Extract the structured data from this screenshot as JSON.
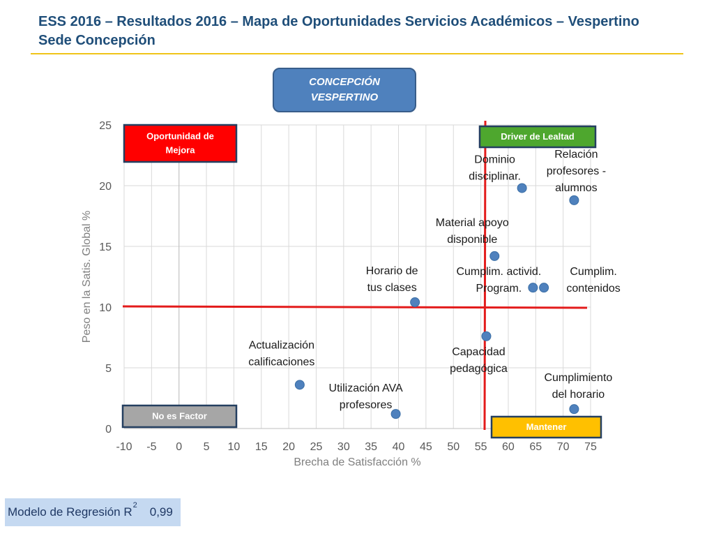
{
  "title": "ESS 2016 – Resultados 2016 – Mapa de Oportunidades Servicios Académicos  – Vespertino\nSede Concepción",
  "badge": "CONCEPCIÓN\nVESPERTINO",
  "colors": {
    "title": "#1f4e79",
    "accent_rule": "#f0c419",
    "point": "#4f81bd",
    "threshold": "#e31b1b",
    "quadrant_oportunidad": "#ff0000",
    "quadrant_driver": "#4ea72e",
    "quadrant_no_factor": "#a6a6a6",
    "quadrant_mantener": "#ffc000"
  },
  "chart_data": {
    "type": "scatter",
    "xlabel": "Brecha de Satisfacción %",
    "ylabel": "Peso en la Satis. Global %",
    "xlim": [
      -10,
      75
    ],
    "ylim": [
      0,
      25
    ],
    "x_ticks": [
      -10,
      -5,
      0,
      5,
      10,
      15,
      20,
      25,
      30,
      35,
      40,
      45,
      50,
      55,
      60,
      65,
      70,
      75
    ],
    "y_ticks": [
      0,
      5,
      10,
      15,
      20,
      25
    ],
    "grid": true,
    "thresholds": {
      "x": 56,
      "y": 10
    },
    "points": [
      {
        "label": "Dominio\ndisciplinar.",
        "x": 62.5,
        "y": 19.8
      },
      {
        "label": "Relación\nprofesores -\nalumnos",
        "x": 72,
        "y": 18.8
      },
      {
        "label": "Material apoyo\ndisponible",
        "x": 57.5,
        "y": 14.2
      },
      {
        "label": "Cumplim. activid.\nProgram.",
        "x": 64.5,
        "y": 11.6
      },
      {
        "label": "Cumplim.\ncontenidos",
        "x": 66.5,
        "y": 11.6
      },
      {
        "label": "Horario de\ntus clases",
        "x": 43,
        "y": 10.4
      },
      {
        "label": "Capacidad\npedagógica",
        "x": 56,
        "y": 7.6
      },
      {
        "label": "Actualización\ncalificaciones",
        "x": 22,
        "y": 3.6
      },
      {
        "label": "Cumplimiento\ndel horario",
        "x": 72,
        "y": 1.6
      },
      {
        "label": "Utilización AVA\nprofesores",
        "x": 39.5,
        "y": 1.2
      }
    ],
    "quadrants": [
      {
        "label": "Oportunidad de\nMejora",
        "position": "top-left"
      },
      {
        "label": "Driver de Lealtad",
        "position": "top-right"
      },
      {
        "label": "No es Factor",
        "position": "bottom-left"
      },
      {
        "label": "Mantener",
        "position": "bottom-right"
      }
    ]
  },
  "footer": {
    "label": "Modelo de Regresión R",
    "superscript": "2",
    "value": "0,99"
  }
}
